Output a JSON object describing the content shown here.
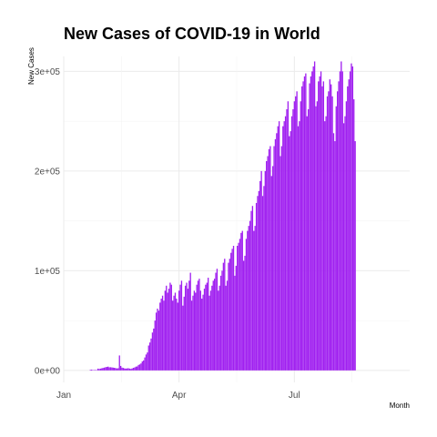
{
  "chart_data": {
    "type": "bar",
    "title": "New Cases of COVID-19 in World",
    "xlabel": "Month",
    "ylabel": "New Cases",
    "color": "#a020f0",
    "grid": true,
    "legend": "none",
    "x_start": "2020-01-01",
    "x_end": "2020-09-30",
    "ylim": [
      -12000,
      315000
    ],
    "yticks": [
      {
        "value": 0,
        "label": "0e+00"
      },
      {
        "value": 100000,
        "label": "1e+05"
      },
      {
        "value": 200000,
        "label": "2e+05"
      },
      {
        "value": 300000,
        "label": "3e+05"
      }
    ],
    "xticks": [
      {
        "date": "2020-01-01",
        "label": "Jan"
      },
      {
        "date": "2020-04-01",
        "label": "Apr"
      },
      {
        "date": "2020-07-01",
        "label": "Jul"
      }
    ],
    "series": [
      {
        "dates": [
          "2020-01-22",
          "2020-03-31",
          "2020-04-01",
          "2020-06-30",
          "2020-07-01",
          "2020-09-20"
        ],
        "values": [
          600,
          800,
          300,
          400,
          500,
          200,
          1800,
          1500,
          1800,
          2100,
          2500,
          2800,
          3200,
          3500,
          3800,
          3100,
          3200,
          3000,
          2800,
          2600,
          2300,
          2000,
          2200,
          15000,
          4500,
          2800,
          2500,
          2000,
          1800,
          2000,
          2200,
          1800,
          1500,
          2000,
          2600,
          3000,
          3800,
          4000,
          5500,
          6000,
          7000,
          9000,
          10000,
          13000,
          16000,
          18000,
          25000,
          28000,
          32000,
          38000,
          42000,
          50000,
          58000,
          62000,
          60000,
          68000,
          72000,
          75000,
          70000,
          80000,
          85000,
          78000,
          82000,
          88000,
          86000,
          70000,
          75000,
          78000,
          72000,
          68000,
          80000,
          86000,
          90000,
          65000,
          74000,
          85000,
          88000,
          82000,
          90000,
          98000,
          70000,
          75000,
          80000,
          78000,
          86000,
          90000,
          92000,
          80000,
          72000,
          76000,
          82000,
          86000,
          88000,
          93000,
          75000,
          80000,
          85000,
          90000,
          92000,
          98000,
          102000,
          80000,
          85000,
          95000,
          100000,
          108000,
          112000,
          85000,
          90000,
          108000,
          112000,
          118000,
          122000,
          125000,
          95000,
          105000,
          125000,
          128000,
          132000,
          138000,
          140000,
          110000,
          115000,
          132000,
          140000,
          145000,
          150000,
          160000,
          165000,
          140000,
          145000,
          168000,
          175000,
          180000,
          190000,
          200000,
          175000,
          185000,
          200000,
          210000,
          215000,
          222000,
          225000,
          195000,
          205000,
          225000,
          232000,
          238000,
          245000,
          250000,
          215000,
          225000,
          245000,
          250000,
          255000,
          262000,
          270000,
          235000,
          240000,
          255000,
          262000,
          270000,
          275000,
          280000,
          245000,
          250000,
          270000,
          285000,
          290000,
          295000,
          298000,
          255000,
          262000,
          288000,
          295000,
          300000,
          305000,
          310000,
          265000,
          270000,
          290000,
          295000,
          300000,
          285000,
          290000,
          250000,
          255000,
          275000,
          280000,
          292000,
          287000,
          275000,
          238000,
          230000,
          265000,
          280000,
          290000,
          300000,
          310000,
          300000,
          248000,
          255000,
          270000,
          285000,
          292000,
          300000,
          308000,
          305000,
          272000,
          230000
        ]
      }
    ]
  }
}
